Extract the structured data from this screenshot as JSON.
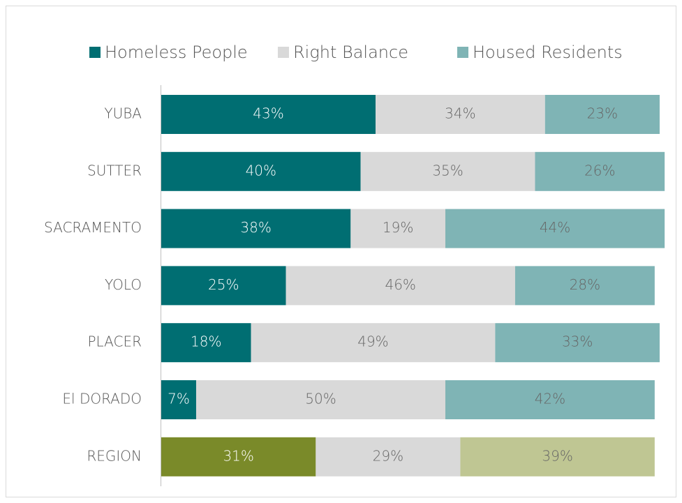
{
  "chart_data": {
    "type": "stacked_barh",
    "legend": "top",
    "categories": [
      "YUBA",
      "SUTTER",
      "SACRAMENTO",
      "YOLO",
      "PLACER",
      "El DORADO",
      "REGION"
    ],
    "xlim": [
      0,
      100
    ],
    "series": [
      {
        "name": "Homeless People",
        "color": "#006e72",
        "colors": [
          "#006e72",
          "#006e72",
          "#006e72",
          "#006e72",
          "#006e72",
          "#006e72",
          "#7a8a29"
        ],
        "values": [
          43,
          40,
          38,
          25,
          18,
          7,
          31
        ],
        "value_labels": [
          "43%",
          "40%",
          "38%",
          "25%",
          "18%",
          "7%",
          "31%"
        ]
      },
      {
        "name": "Right Balance",
        "color": "#d9d9d9",
        "colors": [
          "#d9d9d9",
          "#d9d9d9",
          "#d9d9d9",
          "#d9d9d9",
          "#d9d9d9",
          "#d9d9d9",
          "#d9d9d9"
        ],
        "values": [
          34,
          35,
          19,
          46,
          49,
          50,
          29
        ],
        "value_labels": [
          "34%",
          "35%",
          "19%",
          "46%",
          "49%",
          "50%",
          "29%"
        ]
      },
      {
        "name": "Housed Residents",
        "color": "#7fb4b5",
        "colors": [
          "#7fb4b5",
          "#7fb4b5",
          "#7fb4b5",
          "#7fb4b5",
          "#7fb4b5",
          "#7fb4b5",
          "#bfc693"
        ],
        "values": [
          23,
          26,
          44,
          28,
          33,
          42,
          39
        ],
        "value_labels": [
          "23%",
          "26%",
          "44%",
          "28%",
          "33%",
          "42%",
          "39%"
        ]
      }
    ]
  }
}
